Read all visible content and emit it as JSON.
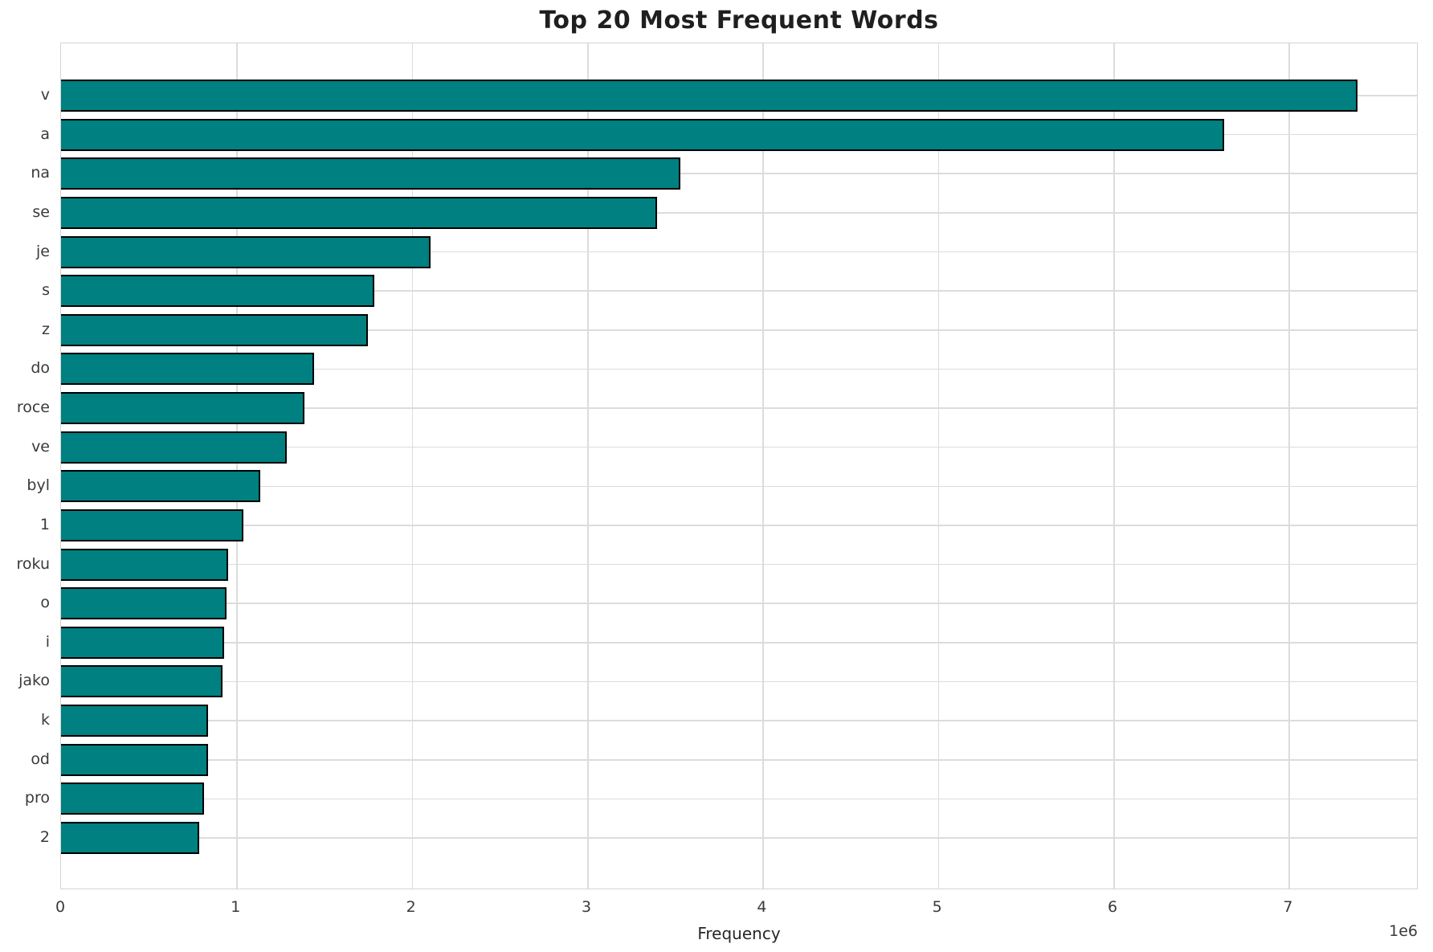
{
  "chart_data": {
    "type": "bar",
    "orientation": "horizontal",
    "title": "Top 20 Most Frequent Words",
    "xlabel": "Frequency",
    "ylabel": "",
    "categories": [
      "v",
      "a",
      "na",
      "se",
      "je",
      "s",
      "z",
      "do",
      "roce",
      "ve",
      "byl",
      "1",
      "roku",
      "o",
      "i",
      "jako",
      "k",
      "od",
      "pro",
      "2"
    ],
    "values": [
      7390000,
      6630000,
      3530000,
      3400000,
      2105000,
      1785000,
      1748000,
      1442000,
      1387000,
      1286000,
      1135000,
      1039000,
      952000,
      943000,
      929000,
      920000,
      837000,
      837000,
      815000,
      787000
    ],
    "xlim": [
      0,
      7740000
    ],
    "xticks": [
      0,
      1,
      2,
      3,
      4,
      5,
      6,
      7
    ],
    "x_tick_unit": 1000000,
    "x_scale_label": "1e6",
    "grid": true,
    "legend": null,
    "bar_color": "#008080",
    "bar_edge_color": "#000000",
    "grid_color": "#dcdcdc",
    "background_color": "#ffffff"
  }
}
